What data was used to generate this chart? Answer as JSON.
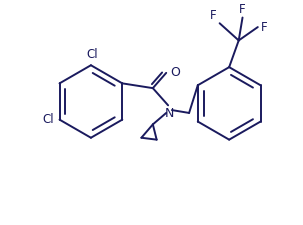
{
  "background_color": "#ffffff",
  "line_color": "#1a1a5e",
  "line_width": 1.4,
  "font_size": 8.5,
  "figsize": [
    3.03,
    2.26
  ],
  "dpi": 100,
  "xlim": [
    0,
    303
  ],
  "ylim": [
    0,
    226
  ]
}
